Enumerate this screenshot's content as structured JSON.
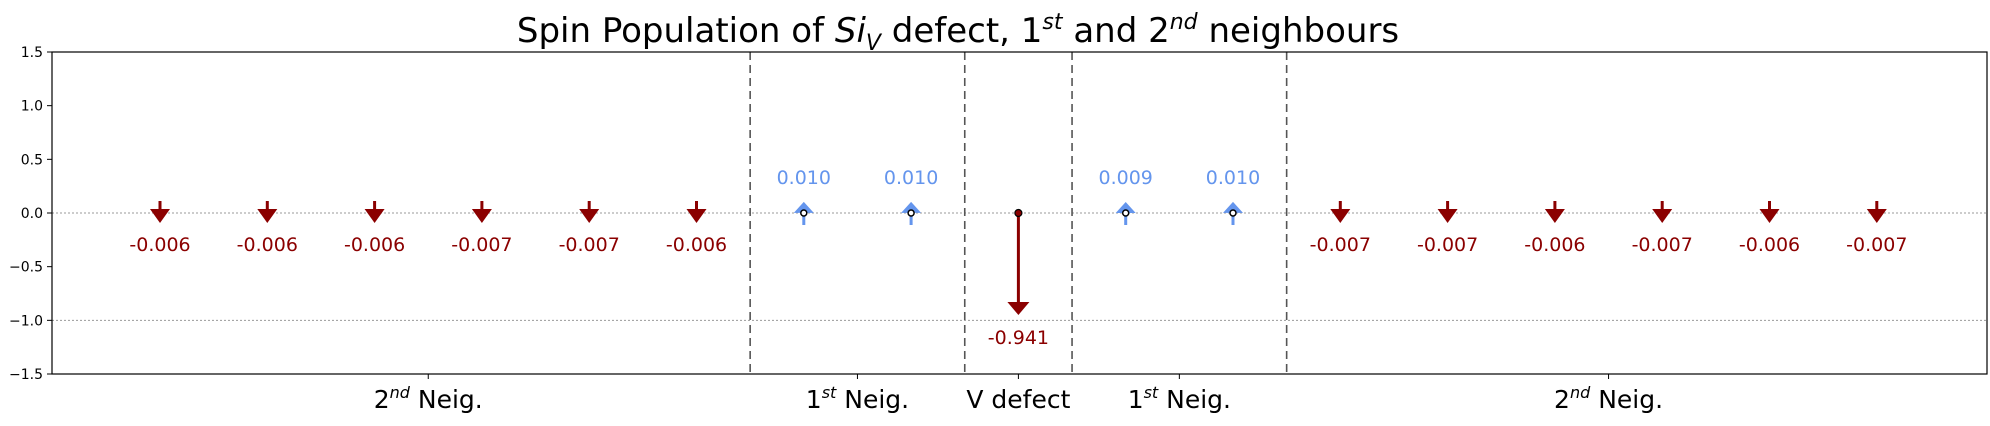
{
  "chart_data": {
    "type": "scatter",
    "title": {
      "prefix": "Spin Population of ",
      "species": "Si",
      "species_sub": "V",
      "middle": " defect, 1",
      "sup1": "st",
      "and": " and 2",
      "sup2": "nd",
      "suffix": " neighbours"
    },
    "ylim": [
      -1.5,
      1.5
    ],
    "yticks": [
      "1.5",
      "1.0",
      "0.5",
      "0.0",
      "−0.5",
      "−1.0",
      "−1.5"
    ],
    "ytick_values": [
      1.5,
      1.0,
      0.5,
      0.0,
      -0.5,
      -1.0,
      -1.5
    ],
    "reference_lines": [
      0.0,
      -1.0
    ],
    "grid": false,
    "colors": {
      "positive": "#6495ed",
      "negative": "#8b0000",
      "separator": "#555555",
      "reference": "#999999"
    },
    "values": [
      -0.006,
      -0.006,
      -0.006,
      -0.007,
      -0.007,
      -0.006,
      0.01,
      0.01,
      -0.941,
      0.009,
      0.01,
      -0.007,
      -0.007,
      -0.006,
      -0.007,
      -0.006,
      -0.007
    ],
    "labels": [
      "-0.006",
      "-0.006",
      "-0.006",
      "-0.007",
      "-0.007",
      "-0.006",
      "0.010",
      "0.010",
      "-0.941",
      "0.009",
      "0.010",
      "-0.007",
      "-0.007",
      "-0.006",
      "-0.007",
      "-0.006",
      "-0.007"
    ],
    "groups": [
      {
        "name": "Neig.",
        "order": "2",
        "sup": "nd",
        "count": 6
      },
      {
        "name": "Neig.",
        "order": "1",
        "sup": "st",
        "count": 2
      },
      {
        "name": "V defect",
        "order": "",
        "sup": "",
        "count": 1
      },
      {
        "name": "Neig.",
        "order": "1",
        "sup": "st",
        "count": 2
      },
      {
        "name": "Neig.",
        "order": "2",
        "sup": "nd",
        "count": 6
      }
    ]
  }
}
